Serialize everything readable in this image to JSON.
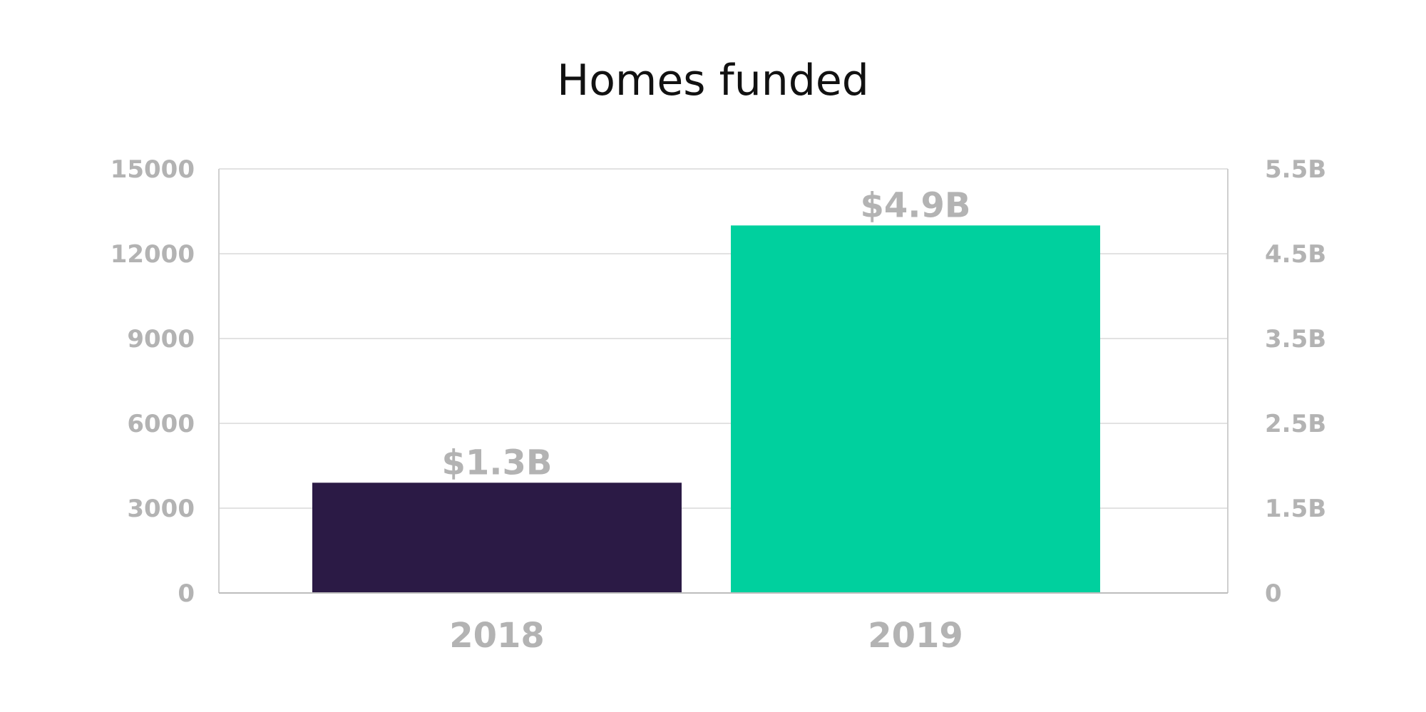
{
  "chart_data": {
    "type": "bar",
    "title": "Homes funded",
    "categories": [
      "2018",
      "2019"
    ],
    "values": [
      3900,
      13000
    ],
    "data_labels": [
      "$1.3B",
      "$4.9B"
    ],
    "colors": [
      "#2b1a45",
      "#00d09e"
    ],
    "y_left": {
      "range": [
        0,
        15000
      ],
      "ticks": [
        "0",
        "3000",
        "6000",
        "9000",
        "12000",
        "15000"
      ]
    },
    "y_right": {
      "ticks": [
        "0",
        "1.5B",
        "2.5B",
        "3.5B",
        "4.5B",
        "5.5B"
      ]
    },
    "grid": true,
    "legend": "none"
  }
}
